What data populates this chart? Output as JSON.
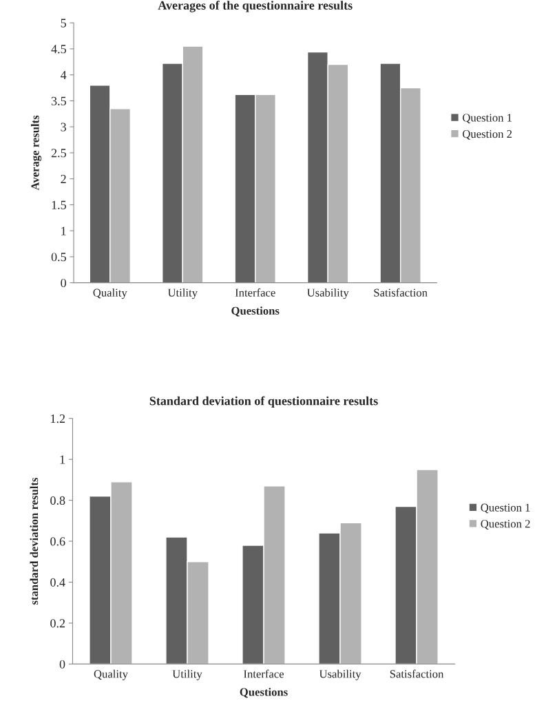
{
  "chart_data": [
    {
      "type": "bar",
      "title": "Averages of the questionnaire results",
      "xlabel": "Questions",
      "ylabel": "Average results",
      "categories": [
        "Quality",
        "Utility",
        "Interface",
        "Usability",
        "Satisfaction"
      ],
      "series": [
        {
          "name": "Question 1",
          "color": "#606060",
          "values": [
            3.8,
            4.22,
            3.62,
            4.44,
            4.22
          ]
        },
        {
          "name": "Question 2",
          "color": "#b2b2b2",
          "values": [
            3.35,
            4.55,
            3.62,
            4.2,
            3.75
          ]
        }
      ],
      "ylim": [
        0,
        5
      ],
      "yticks": [
        0,
        0.5,
        1,
        1.5,
        2,
        2.5,
        3,
        3.5,
        4,
        4.5,
        5
      ],
      "grid": false,
      "legend": "right"
    },
    {
      "type": "bar",
      "title": "Standard deviation of questionnaire results",
      "xlabel": "Questions",
      "ylabel": "standard deviation results",
      "categories": [
        "Quality",
        "Utility",
        "Interface",
        "Usability",
        "Satisfaction"
      ],
      "series": [
        {
          "name": "Question 1",
          "color": "#606060",
          "values": [
            0.82,
            0.62,
            0.58,
            0.64,
            0.77
          ]
        },
        {
          "name": "Question 2",
          "color": "#b2b2b2",
          "values": [
            0.89,
            0.5,
            0.87,
            0.69,
            0.95
          ]
        }
      ],
      "ylim": [
        0,
        1.2
      ],
      "yticks": [
        0,
        0.2,
        0.4,
        0.6,
        0.8,
        1,
        1.2
      ],
      "grid": false,
      "legend": "right"
    }
  ]
}
